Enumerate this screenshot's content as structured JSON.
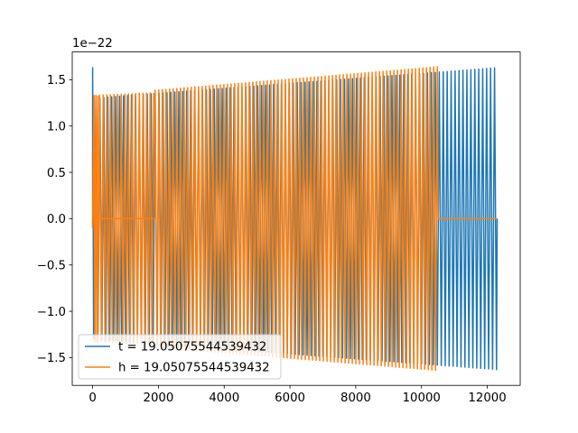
{
  "chart_data": {
    "type": "line",
    "title": "",
    "xlabel": "",
    "ylabel": "",
    "xlim": [
      -620,
      13000
    ],
    "ylim": [
      -1.8,
      1.8
    ],
    "y_offset_text": "1e−22",
    "x_ticks": [
      0,
      2000,
      4000,
      6000,
      8000,
      10000,
      12000
    ],
    "x_tick_labels": [
      "0",
      "2000",
      "4000",
      "6000",
      "8000",
      "10000",
      "12000"
    ],
    "y_ticks": [
      -1.5,
      -1.0,
      -0.5,
      0.0,
      0.5,
      1.0,
      1.5
    ],
    "y_tick_labels": [
      "−1.5",
      "−1.0",
      "−0.5",
      "0.0",
      "0.5",
      "1.0",
      "1.5"
    ],
    "grid": false,
    "legend_position": "lower-left",
    "series": [
      {
        "name": "t = 19.05075544539432",
        "color": "#1f77b4",
        "description_points": {
          "x_start": 0,
          "x_end": 12300,
          "amp_start": 1.63,
          "amp_end": 1.63,
          "mid_amp": 1.4,
          "oscillating": true
        }
      },
      {
        "name": "h = 19.05075544539432",
        "color": "#ff7f0e",
        "description_points": {
          "x_start": 0,
          "x_end": 10500,
          "amp_start": 1.33,
          "amp_end": 1.64,
          "flat_after": 10500,
          "flat_until": 12300,
          "gap_start": 100,
          "gap_end": 1900,
          "oscillating": true
        }
      }
    ]
  }
}
